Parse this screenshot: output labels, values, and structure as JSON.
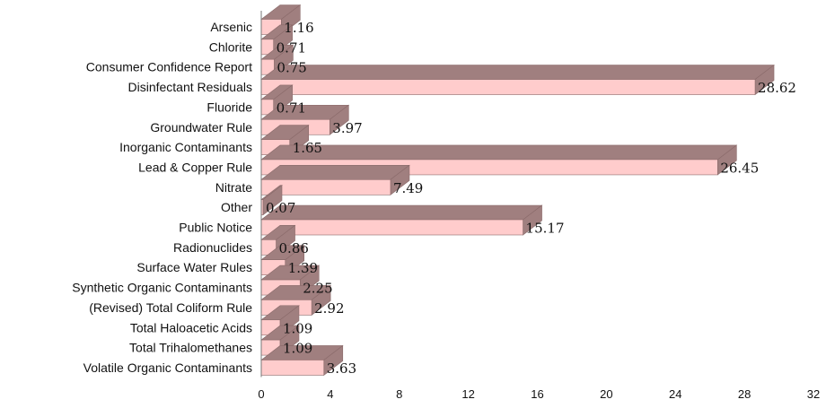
{
  "chart_data": {
    "type": "bar",
    "orientation": "horizontal",
    "style": "3d",
    "categories": [
      "Arsenic",
      "Chlorite",
      "Consumer Confidence Report",
      "Disinfectant Residuals",
      "Fluoride",
      "Groundwater Rule",
      "Inorganic Contaminants",
      "Lead & Copper Rule",
      "Nitrate",
      "Other",
      "Public Notice",
      "Radionuclides",
      "Surface Water Rules",
      "Synthetic Organic Contaminants",
      "(Revised) Total Coliform Rule",
      "Total Haloacetic Acids",
      "Total Trihalomethanes",
      "Volatile Organic Contaminants"
    ],
    "values": [
      1.16,
      0.71,
      0.75,
      28.62,
      0.71,
      3.97,
      1.65,
      26.45,
      7.49,
      0.07,
      15.17,
      0.86,
      1.39,
      2.25,
      2.92,
      1.09,
      1.09,
      3.63
    ],
    "value_labels": [
      "1.16",
      "0.71",
      "0.75",
      "28.62",
      "0.71",
      "3.97",
      "1.65",
      "26.45",
      "7.49",
      "0.07",
      "15.17",
      "0.86",
      "1.39",
      "2.25",
      "2.92",
      "1.09",
      "1.09",
      "3.63"
    ],
    "x_ticks": [
      "0",
      "4",
      "8",
      "12",
      "16",
      "20",
      "24",
      "28",
      "32"
    ],
    "xlim": [
      0,
      32
    ],
    "title": "",
    "xlabel": "",
    "ylabel": "",
    "grid": false,
    "legend": "none",
    "colors": {
      "bar_front": "#ffcccc",
      "bar_top": "#a07f7f",
      "bar_edge": "#8a6a6a",
      "axis": "#777777"
    }
  }
}
